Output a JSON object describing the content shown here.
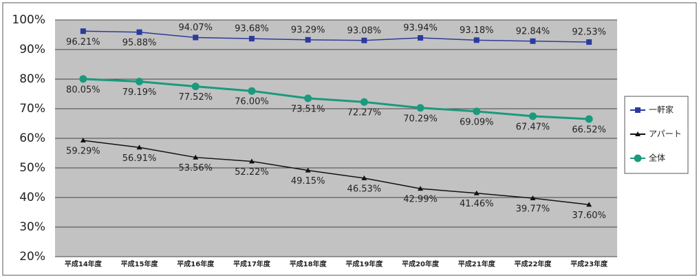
{
  "chart_data": {
    "type": "line",
    "categories": [
      "平成14年度",
      "平成15年度",
      "平成16年度",
      "平成17年度",
      "平成18年度",
      "平成19年度",
      "平成20年度",
      "平成21年度",
      "平成22年度",
      "平成23年度"
    ],
    "series": [
      {
        "name": "一軒家",
        "color": "#2b3a9c",
        "marker": "square",
        "values": [
          96.21,
          95.88,
          94.07,
          93.68,
          93.29,
          93.08,
          93.94,
          93.18,
          92.84,
          92.53
        ],
        "value_labels": [
          "96.21%",
          "95.88%",
          "94.07%",
          "93.68%",
          "93.29%",
          "93.08%",
          "93.94%",
          "93.18%",
          "92.84%",
          "92.53%"
        ]
      },
      {
        "name": "アパート",
        "color": "#111111",
        "marker": "triangle",
        "values": [
          59.29,
          56.91,
          53.56,
          52.22,
          49.15,
          46.53,
          42.99,
          41.46,
          39.77,
          37.6
        ],
        "value_labels": [
          "59.29%",
          "56.91%",
          "53.56%",
          "52.22%",
          "49.15%",
          "46.53%",
          "42.99%",
          "41.46%",
          "39.77%",
          "37.60%"
        ]
      },
      {
        "name": "全体",
        "color": "#1a9a7c",
        "marker": "circle",
        "values": [
          80.05,
          79.19,
          77.52,
          76.0,
          73.51,
          72.27,
          70.29,
          69.09,
          67.47,
          66.52
        ],
        "value_labels": [
          "80.05%",
          "79.19%",
          "77.52%",
          "76.00%",
          "73.51%",
          "72.27%",
          "70.29%",
          "69.09%",
          "67.47%",
          "66.52%"
        ]
      }
    ],
    "ylim": [
      20,
      100
    ],
    "yticks": [
      {
        "value": 20,
        "label": "20%"
      },
      {
        "value": 30,
        "label": "30%"
      },
      {
        "value": 40,
        "label": "40%"
      },
      {
        "value": 50,
        "label": "50%"
      },
      {
        "value": 60,
        "label": "60%"
      },
      {
        "value": 70,
        "label": "70%"
      },
      {
        "value": 80,
        "label": "80%"
      },
      {
        "value": 90,
        "label": "90%"
      },
      {
        "value": 100,
        "label": "100%"
      }
    ],
    "grid": true,
    "legend": "right"
  }
}
